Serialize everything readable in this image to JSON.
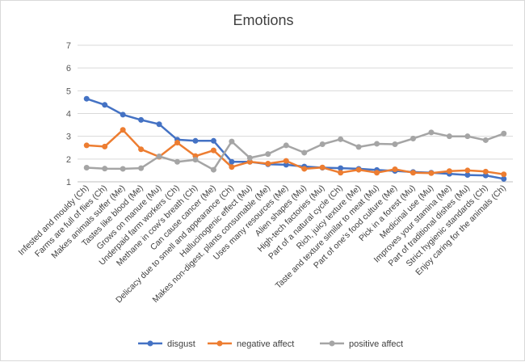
{
  "chart_data": {
    "type": "line",
    "title": "Emotions",
    "xlabel": "",
    "ylabel": "",
    "ylim": [
      1,
      7
    ],
    "yticks": [
      1,
      2,
      3,
      4,
      5,
      6,
      7
    ],
    "grid": "horizontal",
    "legend": "bottom",
    "categories": [
      "Infested and mouldy (Ch)",
      "Farms are full of flies (Ch)",
      "Makes animals suffer (Me)",
      "Tastes like blood (Me)",
      "Grows on manure (Mu)",
      "Underpaid farm workers (Ch)",
      "Methane in cow's breath (Ch)",
      "Can cause cancer (Me)",
      "Delicacy due to smell and appearance (Ch)",
      "Hallucinogenic effect (Mu)",
      "Makes non-digest. plants consumable (Me)",
      "Uses many resources (Me)",
      "Alien shapes (Mu)",
      "High-tech factories (Mu)",
      "Part of a natural cycle (Ch)",
      "Rich, juicy texture (Me)",
      "Taste and texture similar to meat (Mu)",
      "Part of one's food culture (Me)",
      "Pick in a forest (Mu)",
      "Medicinal use (Mu)",
      "Improves your stamina (Me)",
      "Part of traditional dishes (Mu)",
      "Strict hygienic standards (Ch)",
      "Enjoy caring for the animals (Ch)"
    ],
    "series": [
      {
        "name": "disgust",
        "color": "#4472C4",
        "values": [
          4.65,
          4.38,
          3.95,
          3.72,
          3.53,
          2.85,
          2.8,
          2.8,
          1.88,
          1.88,
          1.77,
          1.75,
          1.67,
          1.62,
          1.6,
          1.57,
          1.52,
          1.48,
          1.43,
          1.4,
          1.35,
          1.3,
          1.28,
          1.13
        ]
      },
      {
        "name": "negative affect",
        "color": "#ED7D31",
        "values": [
          2.6,
          2.55,
          3.28,
          2.43,
          2.1,
          2.72,
          2.13,
          2.38,
          1.65,
          1.88,
          1.8,
          1.92,
          1.57,
          1.63,
          1.4,
          1.53,
          1.4,
          1.55,
          1.4,
          1.38,
          1.47,
          1.5,
          1.45,
          1.33
        ]
      },
      {
        "name": "positive affect",
        "color": "#A5A5A5",
        "values": [
          1.62,
          1.58,
          1.57,
          1.6,
          2.12,
          1.88,
          1.97,
          1.53,
          2.77,
          2.05,
          2.22,
          2.6,
          2.28,
          2.65,
          2.87,
          2.53,
          2.67,
          2.65,
          2.9,
          3.17,
          3.0,
          3.0,
          2.83,
          3.12
        ]
      }
    ]
  }
}
